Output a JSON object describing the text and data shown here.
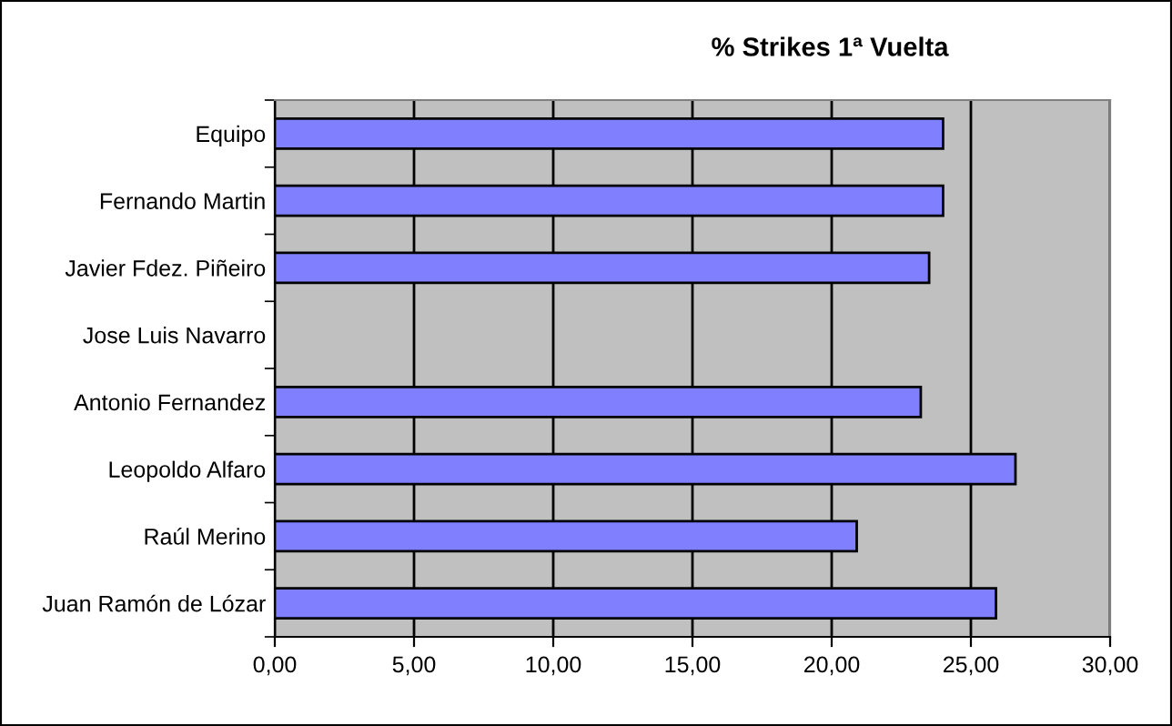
{
  "chart_data": {
    "type": "bar",
    "orientation": "horizontal",
    "title": "% Strikes 1ª Vuelta",
    "categories": [
      "Equipo",
      "Fernando Martin",
      "Javier Fdez. Piñeiro",
      "Jose Luis Navarro",
      "Antonio Fernandez",
      "Leopoldo Alfaro",
      "Raúl Merino",
      "Juan Ramón de Lózar"
    ],
    "values": [
      24.0,
      24.0,
      23.5,
      null,
      23.2,
      26.6,
      20.9,
      25.9
    ],
    "color": "#8080ff",
    "xlim": [
      0,
      30
    ],
    "xticks": [
      {
        "value": 0,
        "label": "0,00"
      },
      {
        "value": 5,
        "label": "5,00"
      },
      {
        "value": 10,
        "label": "10,00"
      },
      {
        "value": 15,
        "label": "15,00"
      },
      {
        "value": 20,
        "label": "20,00"
      },
      {
        "value": 25,
        "label": "25,00"
      },
      {
        "value": 30,
        "label": "30,00"
      }
    ],
    "grid": "x",
    "legend": false
  }
}
